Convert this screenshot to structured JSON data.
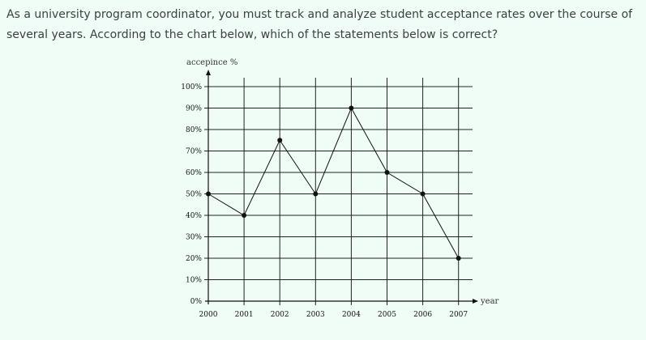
{
  "question": {
    "text": "As a university program coordinator, you must track and analyze student acceptance rates over the course of several years. According to the chart below, which of the statements below is correct?"
  },
  "chart_data": {
    "type": "line",
    "title": "",
    "ylabel": "accepince %",
    "xlabel": "year",
    "x": [
      "2000",
      "2001",
      "2002",
      "2003",
      "2004",
      "2005",
      "2006",
      "2007"
    ],
    "series": [
      {
        "values": [
          50,
          40,
          75,
          50,
          90,
          60,
          50,
          20
        ]
      }
    ],
    "yticks": [
      "0%",
      "10%",
      "20%",
      "30%",
      "40%",
      "50%",
      "60%",
      "70%",
      "80%",
      "90%",
      "100%"
    ],
    "ylim": [
      0,
      100
    ],
    "grid": true,
    "legend": "none"
  }
}
